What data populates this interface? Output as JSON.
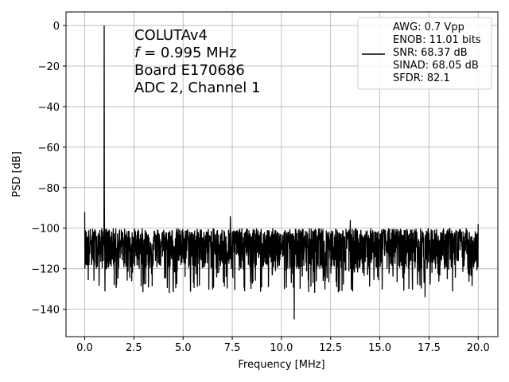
{
  "chart_data": {
    "type": "line",
    "xlabel": "Frequency [MHz]",
    "ylabel": "PSD [dB]",
    "xlim": [
      -0.95,
      21.0
    ],
    "ylim": [
      -153.5,
      6.7
    ],
    "grid": true,
    "xticks": [
      0.0,
      2.5,
      5.0,
      7.5,
      10.0,
      12.5,
      15.0,
      17.5,
      20.0
    ],
    "xtick_labels": [
      "0.0",
      "2.5",
      "5.0",
      "7.5",
      "10.0",
      "12.5",
      "15.0",
      "17.5",
      "20.0"
    ],
    "yticks": [
      0,
      -20,
      -40,
      -60,
      -80,
      -100,
      -120,
      -140
    ],
    "ytick_labels": [
      "0",
      "−20",
      "−40",
      "−60",
      "−80",
      "−100",
      "−120",
      "−140"
    ],
    "annotation": {
      "line1": "COLUTAv4",
      "line2_italic": "f",
      "line2_rest": " = 0.995 MHz",
      "line3": "Board E170686",
      "line4": "ADC 2, Channel 1"
    },
    "legend": {
      "location": "top-right",
      "lines": [
        "AWG: 0.7 Vpp",
        "ENOB: 11.01 bits",
        "SNR: 68.37 dB",
        "SINAD: 68.05 dB",
        "SFDR: 82.1"
      ]
    },
    "series": [
      {
        "color": "#000000",
        "noise_floor_db": -108,
        "noise_range_db": [
          -133,
          -97
        ],
        "peaks": [
          {
            "x": 0.0,
            "y": -92
          },
          {
            "x": 0.995,
            "y": 0.0
          },
          {
            "x": 1.0,
            "y": -85
          },
          {
            "x": 7.4,
            "y": -94
          },
          {
            "x": 10.65,
            "y": -145
          },
          {
            "x": 10.5,
            "y": -127
          },
          {
            "x": 4.3,
            "y": -132
          },
          {
            "x": 17.3,
            "y": -134
          },
          {
            "x": 13.5,
            "y": -96
          },
          {
            "x": 20.0,
            "y": -98
          }
        ],
        "x_range": [
          0.0,
          20.0
        ]
      }
    ]
  }
}
